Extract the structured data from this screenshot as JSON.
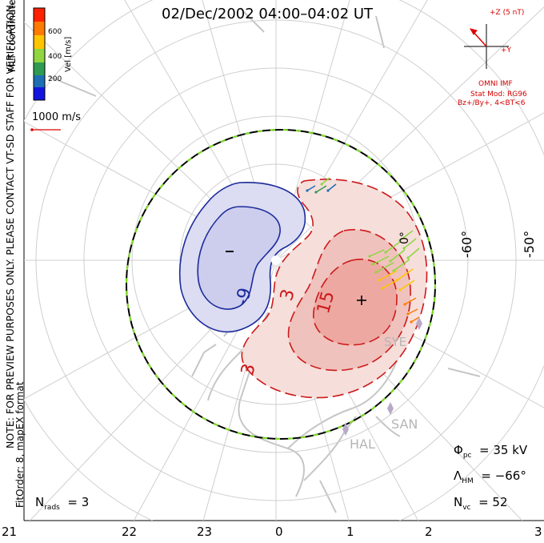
{
  "title": "02/Dec/2002 04:00–04:02 UT",
  "side_notes": {
    "coordinates": "MLT coordinates",
    "preview": "NOTE: FOR PREVIEW PURPOSES ONLY. PLEASE CONTACT VT-SD STAFF FOR VERIFICATION.",
    "fit": "FitOrder: 8, mapEX format"
  },
  "color_scale": {
    "label": "Vel [m/s]",
    "ticks": [
      "600",
      "400",
      "200"
    ],
    "colors": [
      "#ff2200",
      "#ff7a00",
      "#ffc400",
      "#8fd640",
      "#2f9a52",
      "#1e6eb4",
      "#1414e0"
    ]
  },
  "vector_scale": {
    "label": "1000 m/s",
    "color": "#e00000"
  },
  "imf": {
    "z_label": "+Z (5 nT)",
    "y_label": "+Y",
    "source": "OMNI IMF",
    "model": "Stat Mod: RG96",
    "condition": "Bz+/By+, 4<BT<6"
  },
  "grid": {
    "mlt_labels": [
      "21",
      "22",
      "23",
      "0",
      "1",
      "2",
      "3"
    ],
    "lat_labels": [
      "-60°",
      "-50°",
      "0°"
    ]
  },
  "contours": {
    "neg_label": "-9",
    "pos_labels": [
      "3",
      "15",
      "3",
      "3"
    ],
    "min_marker": "–",
    "max_marker": "+"
  },
  "stations": [
    "SYE",
    "SAN",
    "HAL"
  ],
  "stats": {
    "phi_symbol": "Φ",
    "phi_sub": "pc",
    "phi_value": "= 35 kV",
    "lambda_symbol": "Λ",
    "lambda_sub": "HM",
    "lambda_value": "= −66°",
    "nvc_symbol": "N",
    "nvc_sub": "vc",
    "nvc_value": "= 52",
    "nrads_symbol": "N",
    "nrads_sub": "rads",
    "nrads_value": "= 3"
  }
}
